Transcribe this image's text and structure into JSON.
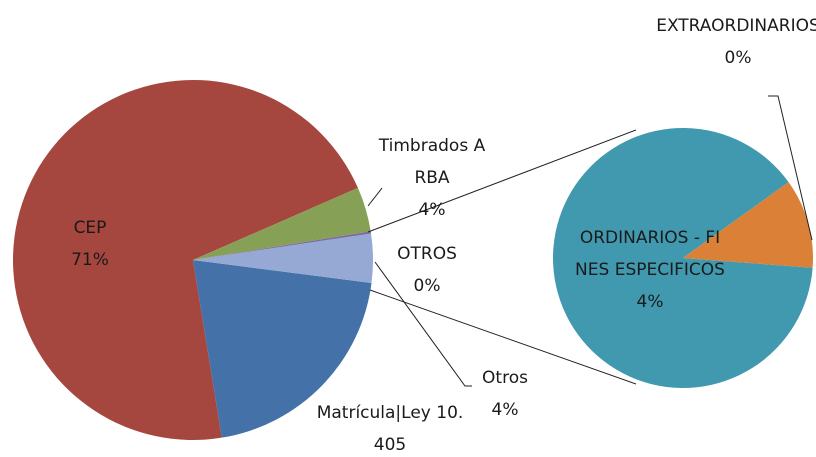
{
  "chart_data": [
    {
      "type": "pie",
      "categories": [
        "Timbrados ARBA",
        "OTROS",
        "Otros",
        "Matrícula|Ley 10.405",
        "CEP"
      ],
      "values": [
        4,
        0.2,
        4.4,
        20.4,
        71
      ],
      "value_labels": [
        "4%",
        "0%",
        "4%",
        null,
        "71%"
      ],
      "colors": [
        "#86a155",
        "#7e6aa0",
        "#95a9d4",
        "#4472a8",
        "#a5463f"
      ]
    },
    {
      "type": "pie",
      "categories": [
        "EXTRAORDINARIOS",
        "ORDINARIOS - FINES ESPECIFICOS"
      ],
      "values": [
        0.45,
        3.6
      ],
      "value_labels": [
        "0%",
        "4%"
      ],
      "colors": [
        "#da8137",
        "#4199b0"
      ]
    }
  ]
}
